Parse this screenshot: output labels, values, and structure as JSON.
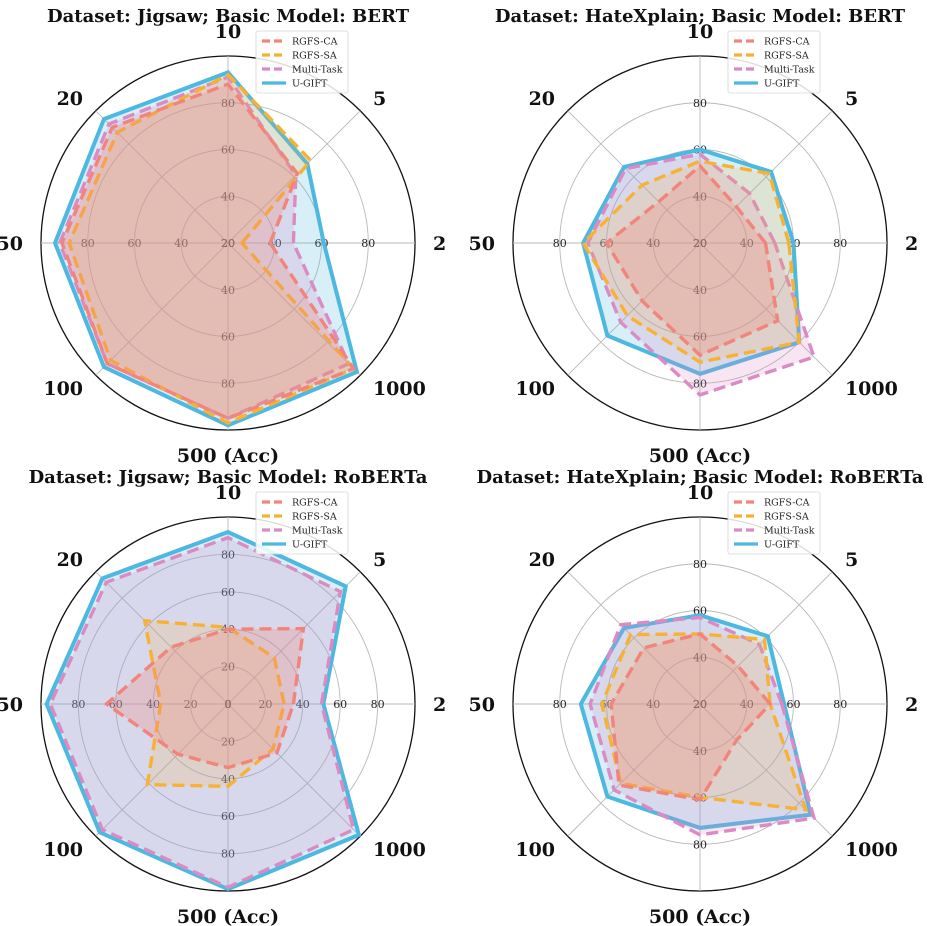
{
  "figure": {
    "colors": {
      "RGFS-CA": "#f2847a",
      "RGFS-SA": "#f7b135",
      "Multi-Task": "#db8ac4",
      "U-GIFT": "#4db8e0"
    }
  },
  "chart_data": [
    {
      "type": "radar",
      "title": "Dataset: Jigsaw; Basic Model: BERT",
      "categories": [
        "2",
        "5",
        "10",
        "20",
        "50",
        "100",
        "500 (Acc)",
        "1000"
      ],
      "range": [
        20,
        100
      ],
      "radial_ticks": [
        "20",
        "40",
        "60",
        "80"
      ],
      "legend_position": "upper-right",
      "series": [
        {
          "name": "RGFS-CA",
          "values": [
            38,
            62,
            88,
            90,
            91,
            93,
            95,
            96
          ]
        },
        {
          "name": "RGFS-SA",
          "values": [
            26,
            70,
            92,
            87,
            88,
            91,
            97,
            96
          ]
        },
        {
          "name": "Multi-Task",
          "values": [
            48,
            61,
            91,
            92,
            92,
            93,
            95,
            93
          ]
        },
        {
          "name": "U-GIFT",
          "values": [
            61,
            68,
            93,
            95,
            94,
            95,
            98,
            98
          ]
        }
      ]
    },
    {
      "type": "radar",
      "title": "Dataset: HateXplain; Basic Model: BERT",
      "categories": [
        "2",
        "5",
        "10",
        "20",
        "50",
        "100",
        "500 (Acc)",
        "1000"
      ],
      "range": [
        20,
        100
      ],
      "radial_ticks": [
        "20",
        "40",
        "60",
        "80"
      ],
      "legend_position": "upper-right",
      "series": [
        {
          "name": "RGFS-CA",
          "values": [
            48,
            42,
            53,
            45,
            60,
            55,
            68,
            67
          ]
        },
        {
          "name": "RGFS-SA",
          "values": [
            58,
            62,
            55,
            55,
            70,
            64,
            71,
            80
          ]
        },
        {
          "name": "Multi-Task",
          "values": [
            52,
            50,
            58,
            65,
            68,
            68,
            85,
            89
          ]
        },
        {
          "name": "U-GIFT",
          "values": [
            60,
            63,
            60,
            66,
            70,
            76,
            76,
            80
          ]
        }
      ]
    },
    {
      "type": "radar",
      "title": "Dataset: Jigsaw; Basic Model: RoBERTa",
      "categories": [
        "2",
        "5",
        "10",
        "20",
        "50",
        "100",
        "500 (Acc)",
        "1000"
      ],
      "range": [
        0,
        100
      ],
      "radial_ticks": [
        "0",
        "20",
        "40",
        "60",
        "80"
      ],
      "legend_position": "upper-right",
      "series": [
        {
          "name": "RGFS-CA",
          "values": [
            35,
            57,
            40,
            43,
            65,
            38,
            34,
            37
          ]
        },
        {
          "name": "RGFS-SA",
          "values": [
            30,
            35,
            41,
            63,
            36,
            61,
            44,
            34
          ]
        },
        {
          "name": "Multi-Task",
          "values": [
            50,
            85,
            89,
            92,
            95,
            95,
            98,
            95
          ]
        },
        {
          "name": "U-GIFT",
          "values": [
            51,
            89,
            92,
            95,
            97,
            97,
            99,
            99
          ]
        }
      ]
    },
    {
      "type": "radar",
      "title": "Dataset: HateXplain; Basic Model: RoBERTa",
      "categories": [
        "2",
        "5",
        "10",
        "20",
        "50",
        "100",
        "500 (Acc)",
        "1000"
      ],
      "range": [
        20,
        100
      ],
      "radial_ticks": [
        "20",
        "40",
        "60",
        "80"
      ],
      "legend_position": "upper-right",
      "series": [
        {
          "name": "RGFS-CA",
          "values": [
            50,
            43,
            50,
            54,
            58,
            69,
            61,
            42
          ]
        },
        {
          "name": "RGFS-SA",
          "values": [
            50,
            59,
            50,
            62,
            62,
            68,
            60,
            84
          ]
        },
        {
          "name": "Multi-Task",
          "values": [
            55,
            56,
            57,
            68,
            67,
            72,
            76,
            89
          ]
        },
        {
          "name": "U-GIFT",
          "values": [
            56,
            61,
            58,
            66,
            71,
            76,
            73,
            87
          ]
        }
      ]
    }
  ]
}
